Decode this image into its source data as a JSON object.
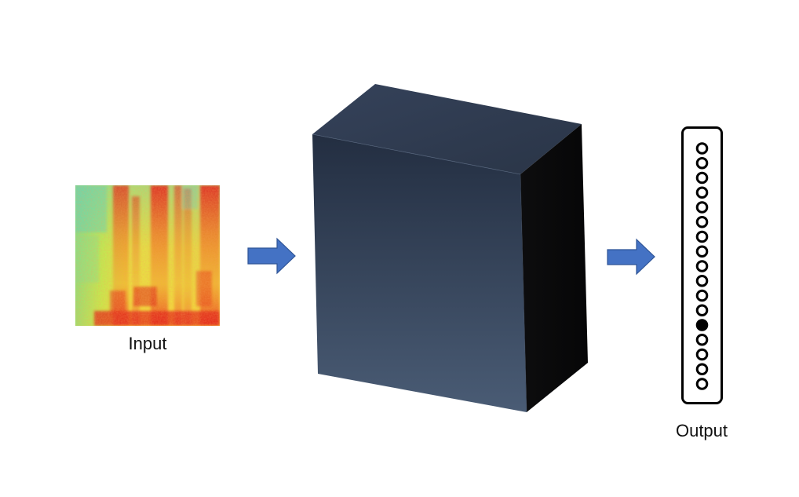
{
  "diagram": {
    "input_label": "Input",
    "output_label": "Output",
    "output_vector": {
      "count": 17,
      "active_index": 12
    }
  },
  "colors": {
    "arrow_fill": "#4472c4",
    "arrow_stroke": "#2f5597",
    "box_front_top": "#232f42",
    "box_front_bottom": "#4a5b73",
    "box_top": "#2e3a4d",
    "box_side": "#0b0b0c",
    "neuron_stroke": "#000000",
    "neuron_active": "#000000",
    "neuron_inactive": "#ffffff"
  }
}
